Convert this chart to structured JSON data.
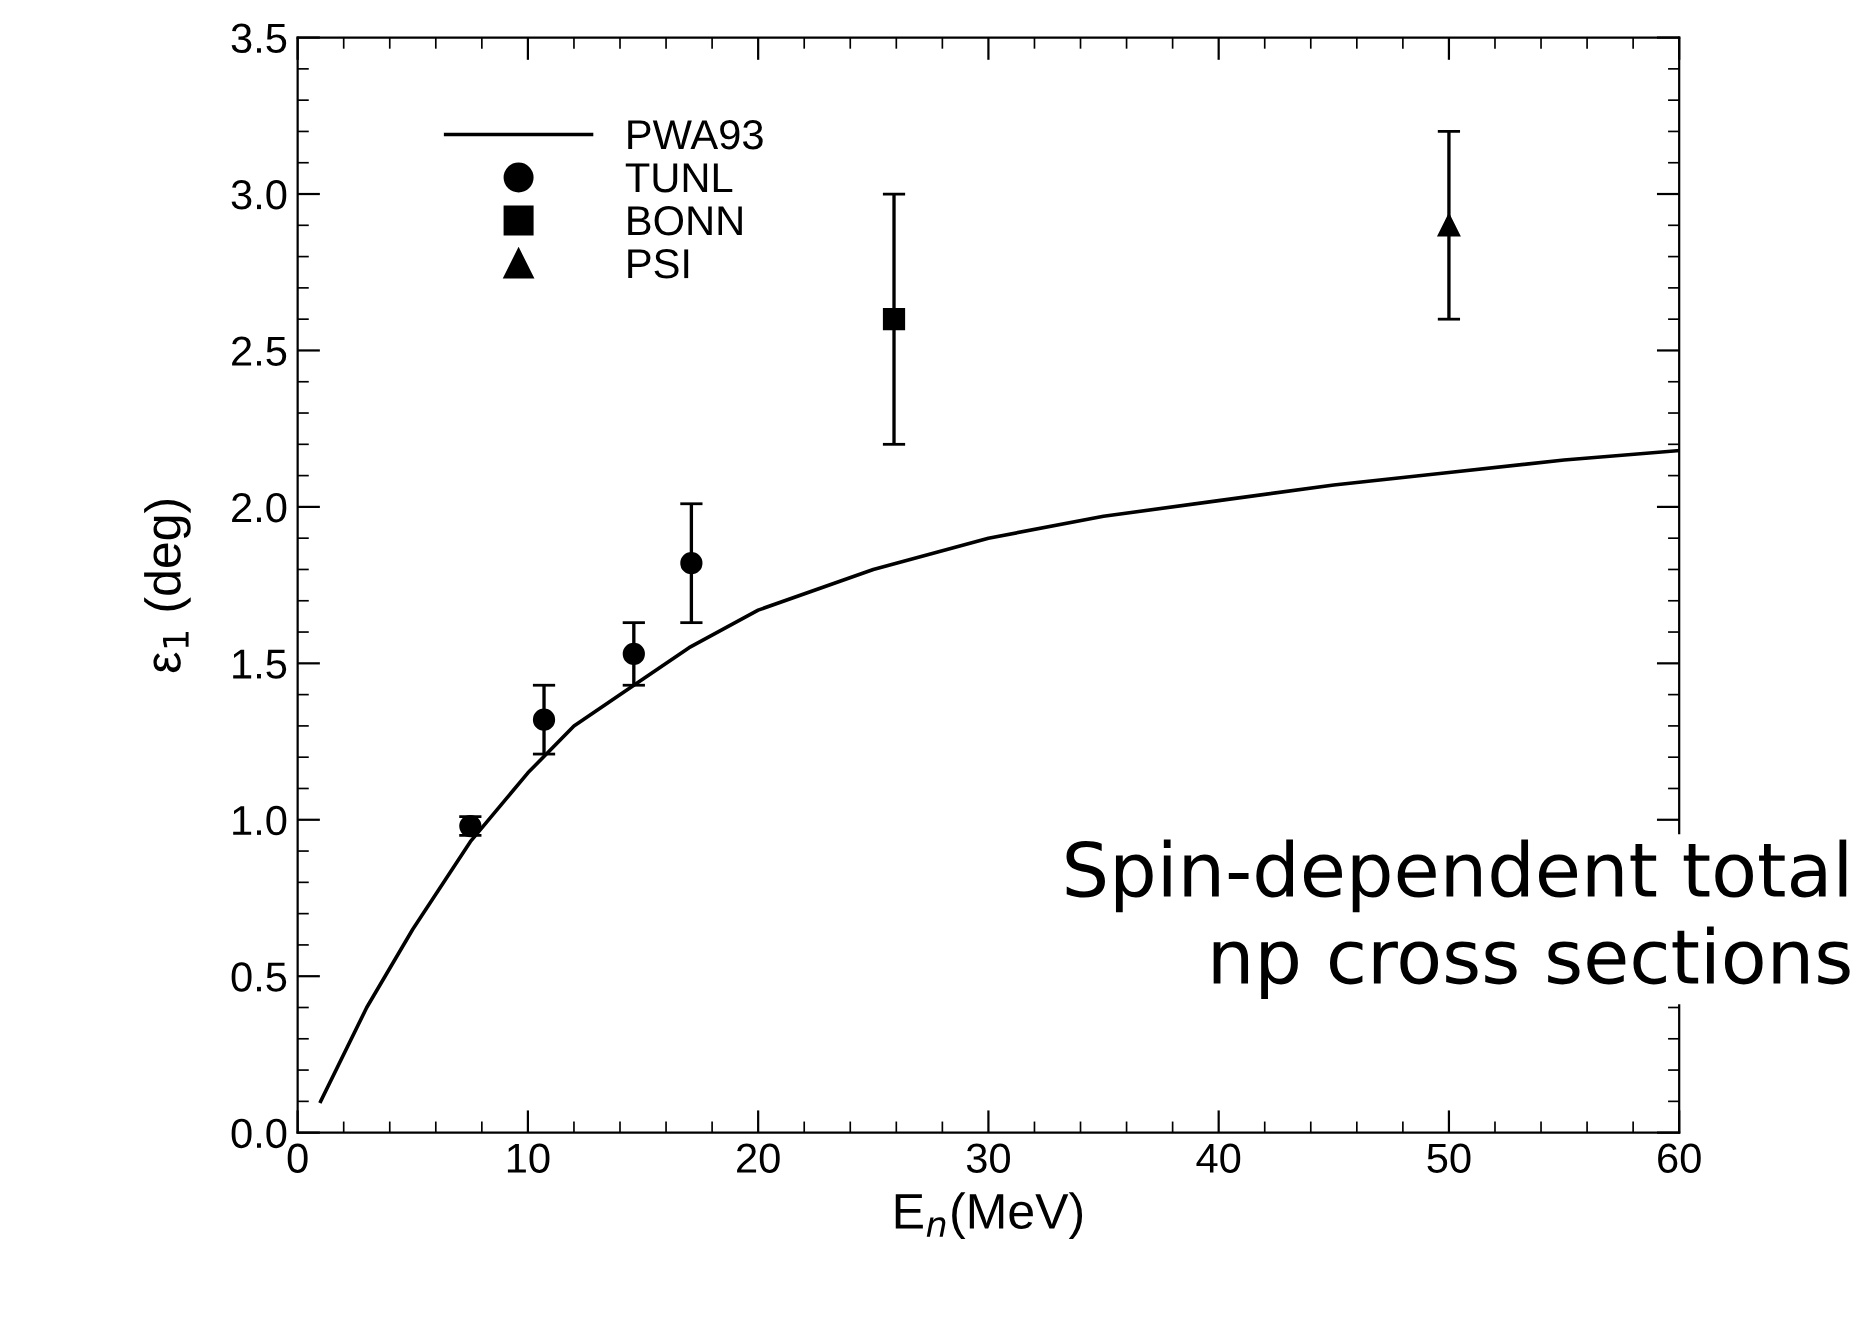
{
  "chart_data": {
    "type": "line",
    "xlabel": "E$_{n}$(MeV)",
    "ylabel": "ε$_{1}$ (deg)",
    "xlim": [
      0,
      60
    ],
    "xticks": [
      0,
      10,
      20,
      30,
      40,
      50,
      60
    ],
    "ylim": [
      0,
      3.5
    ],
    "yticks": [
      {
        "value": 0,
        "label": "0.0"
      },
      {
        "value": 0.5,
        "label": "0.5"
      },
      {
        "value": 1,
        "label": "1.0"
      },
      {
        "value": 1.5,
        "label": "1.5"
      },
      {
        "value": 2,
        "label": "2.0"
      },
      {
        "value": 2.5,
        "label": "2.5"
      },
      {
        "value": 3,
        "label": "3.0"
      },
      {
        "value": 3.5,
        "label": "3.5"
      }
    ],
    "grid": false,
    "legend": "top left",
    "series": [
      {
        "name": "PWA93",
        "color": "#000000",
        "marker": "none",
        "line_style": "solid",
        "x": [
          1,
          3,
          5,
          7.5,
          10,
          12,
          15,
          17,
          20,
          25,
          30,
          35,
          40,
          45,
          50,
          55,
          60
        ],
        "values": [
          0.1,
          0.4,
          0.65,
          0.93,
          1.15,
          1.3,
          1.45,
          1.55,
          1.67,
          1.8,
          1.9,
          1.97,
          2.02,
          2.07,
          2.11,
          2.15,
          2.18
        ]
      },
      {
        "name": "TUNL",
        "type": "scatter",
        "color": "#000000",
        "marker": "circle",
        "x": [
          7.5,
          10.7,
          14.6,
          17.1
        ],
        "values": [
          0.98,
          1.32,
          1.53,
          1.82
        ],
        "errors": [
          0.03,
          0.11,
          0.1,
          0.19
        ]
      },
      {
        "name": "BONN",
        "type": "scatter",
        "color": "#000000",
        "marker": "square",
        "x": [
          25.9
        ],
        "values": [
          2.6
        ],
        "errors": [
          0.4
        ]
      },
      {
        "name": "PSI",
        "type": "scatter",
        "color": "#000000",
        "marker": "triangle",
        "x": [
          50
        ],
        "values": [
          2.9
        ],
        "errors": [
          0.3
        ]
      }
    ],
    "annotations": [
      "Spin-dependent total\nnp cross sections"
    ]
  }
}
